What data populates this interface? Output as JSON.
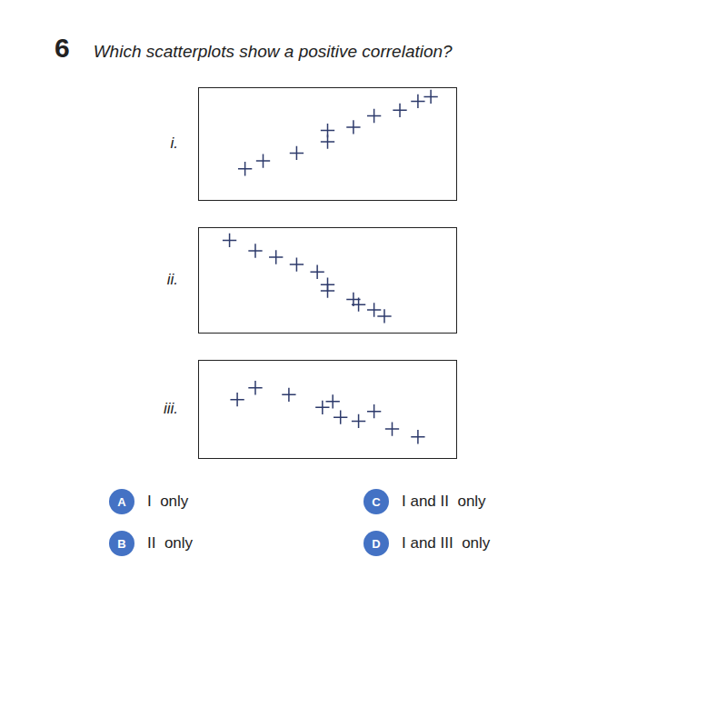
{
  "title": "6",
  "subtitle": "Which scatterplots show a positive correlation?",
  "chart_data": [
    {
      "type": "scatter",
      "title": "i.",
      "x": [
        0.18,
        0.25,
        0.38,
        0.5,
        0.5,
        0.6,
        0.68,
        0.78,
        0.85,
        0.9
      ],
      "values": [
        0.28,
        0.35,
        0.42,
        0.52,
        0.62,
        0.65,
        0.75,
        0.8,
        0.88,
        0.92
      ],
      "xlim": [
        0,
        1
      ],
      "ylim": [
        0,
        1
      ],
      "tick_labels": false,
      "grid": false,
      "marker": "plus",
      "color": "#2d3a6b"
    },
    {
      "type": "scatter",
      "title": "ii.",
      "x": [
        0.12,
        0.22,
        0.3,
        0.38,
        0.46,
        0.5,
        0.5,
        0.6,
        0.62,
        0.68,
        0.72
      ],
      "values": [
        0.88,
        0.78,
        0.72,
        0.65,
        0.58,
        0.46,
        0.4,
        0.32,
        0.27,
        0.22,
        0.16
      ],
      "xlim": [
        0,
        1
      ],
      "ylim": [
        0,
        1
      ],
      "tick_labels": false,
      "grid": false,
      "marker": "plus",
      "color": "#2d3a6b"
    },
    {
      "type": "scatter",
      "title": "iii.",
      "x": [
        0.15,
        0.22,
        0.35,
        0.48,
        0.52,
        0.55,
        0.62,
        0.68,
        0.75,
        0.85
      ],
      "values": [
        0.6,
        0.72,
        0.65,
        0.52,
        0.58,
        0.42,
        0.38,
        0.48,
        0.3,
        0.22
      ],
      "xlim": [
        0,
        1
      ],
      "ylim": [
        0,
        1
      ],
      "tick_labels": false,
      "grid": false,
      "marker": "plus",
      "color": "#2d3a6b"
    }
  ],
  "annotations": [
    {
      "label": "A",
      "text": "I  only",
      "color": "#4472c4"
    },
    {
      "label": "B",
      "text": "II  only",
      "color": "#4472c4"
    },
    {
      "label": "C",
      "text": "I and II  only",
      "color": "#4472c4"
    },
    {
      "label": "D",
      "text": "I and III  only",
      "color": "#4472c4"
    }
  ]
}
